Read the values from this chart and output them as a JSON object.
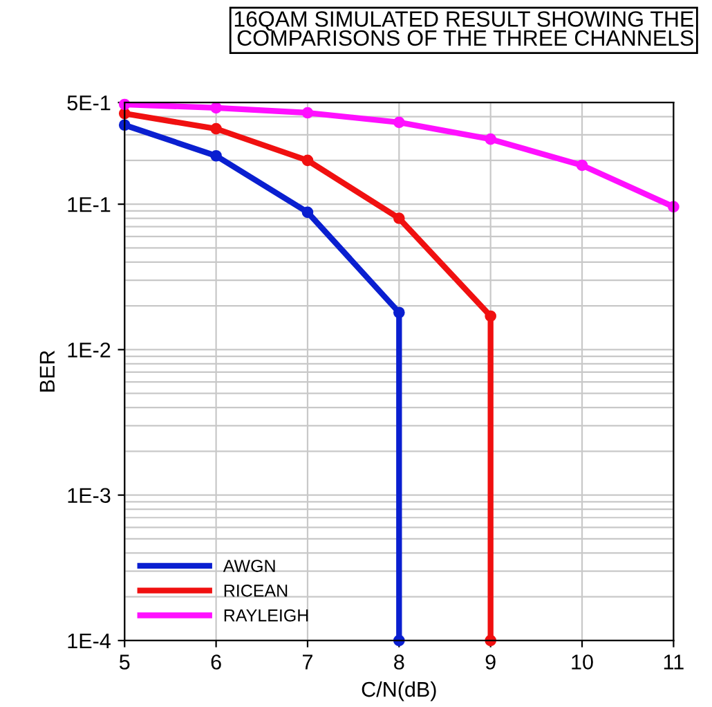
{
  "chart_data": {
    "type": "line",
    "title": "16QAM SIMULATED RESULT SHOWING THE\nCOMPARISONS OF THE THREE CHANNELS",
    "xlabel": "C/N(dB)",
    "ylabel": "BER",
    "series": [
      {
        "name": "AWGN",
        "color": "#0a1fd0",
        "x": [
          5,
          6,
          7,
          8,
          8
        ],
        "values": [
          0.35,
          0.215,
          0.088,
          0.018,
          0.0001
        ]
      },
      {
        "name": "RICEAN",
        "color": "#f01010",
        "x": [
          5,
          6,
          7,
          8,
          9,
          9
        ],
        "values": [
          0.42,
          0.33,
          0.2,
          0.08,
          0.017,
          0.0001
        ]
      },
      {
        "name": "RAYLEIGH",
        "color": "#ff10ff",
        "x": [
          5,
          6,
          7,
          8,
          9,
          10,
          11
        ],
        "values": [
          0.485,
          0.46,
          0.425,
          0.365,
          0.28,
          0.185,
          0.096
        ]
      }
    ],
    "log": "y",
    "xlim": [
      5,
      11
    ],
    "xticks": [
      5,
      6,
      7,
      8,
      9,
      10,
      11
    ],
    "ylim": [
      0.0001,
      0.5
    ],
    "yticks": [
      {
        "value": 0.0001,
        "label": "1E-4"
      },
      {
        "value": 0.001,
        "label": "1E-3"
      },
      {
        "value": 0.01,
        "label": "1E-2"
      },
      {
        "value": 0.1,
        "label": "1E-1"
      },
      {
        "value": 0.5,
        "label": "5E-1"
      }
    ],
    "grid": true,
    "legend": "bottom left",
    "marker": "circle",
    "line_style": "solid"
  }
}
